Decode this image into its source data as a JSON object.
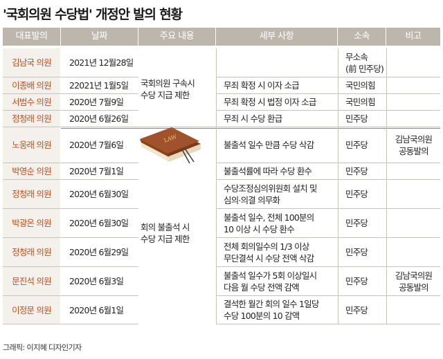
{
  "title": "'국회의원 수당법' 개정안 발의 현황",
  "headers": [
    "대표발의",
    "날짜",
    "주요 내용",
    "세부 사항",
    "소속",
    "비고"
  ],
  "rows": [
    {
      "name": "김남국 의원",
      "date": "2021년 12월28일",
      "detail": [
        "",
        ""
      ],
      "party": [
        "무소속",
        "(前 민주당)"
      ],
      "note": [
        "",
        ""
      ]
    },
    {
      "name": "이종배 의원",
      "date": "22021년 1월5일",
      "detail": [
        "무죄 확정 시 이자 소급",
        ""
      ],
      "party": [
        "국민의힘",
        ""
      ],
      "note": [
        "",
        ""
      ]
    },
    {
      "name": "서범수 의원",
      "date": "2020년 7월9일",
      "detail": [
        "무죄 확정 시 법정 이자 소급",
        ""
      ],
      "party": [
        "국민의힘",
        ""
      ],
      "note": [
        "",
        ""
      ]
    },
    {
      "name": "정청래 의원",
      "date": "2020년 6월26일",
      "detail": [
        "무죄 시 수당 환급",
        ""
      ],
      "party": [
        "민주당",
        ""
      ],
      "note": [
        "",
        ""
      ]
    },
    {
      "name": "노웅래 의원",
      "date": "2020년 7월6일",
      "detail": [
        "불출석 일수 만큼 수당 삭감",
        ""
      ],
      "party": [
        "민주당",
        ""
      ],
      "note": [
        "김남국의원",
        "공동발의"
      ]
    },
    {
      "name": "박영순 의원",
      "date": "2020년 7월1일",
      "detail": [
        "불출석률에 따라 수당 환수",
        ""
      ],
      "party": [
        "민주당",
        ""
      ],
      "note": [
        "",
        ""
      ]
    },
    {
      "name": "정청래 의원",
      "date": "2020년 6월30일",
      "detail": [
        "수당조정심의위원회 설치 및",
        "심의·의결 의무화"
      ],
      "party": [
        "민주당",
        ""
      ],
      "note": [
        "",
        ""
      ]
    },
    {
      "name": "박광온 의원",
      "date": "2020년 6월30일",
      "detail": [
        "불출석 일수, 전체 100분의",
        "10 이상 시 수당 환수"
      ],
      "party": [
        "민주당",
        ""
      ],
      "note": [
        "",
        ""
      ]
    },
    {
      "name": "정청래 의원",
      "date": "2020년 6월29일",
      "detail": [
        "전체 회의일수의 1/3 이상",
        "무단결석 시 수당 전액 삭감"
      ],
      "party": [
        "민주당",
        ""
      ],
      "note": [
        "",
        ""
      ]
    },
    {
      "name": "문진석 의원",
      "date": "2020년 6월3일",
      "detail": [
        "불출석 일수가 5회 이상일시",
        "다음 월 수당 전액 감액"
      ],
      "party": [
        "민주당",
        ""
      ],
      "note": [
        "김남국의원",
        "공동발의"
      ]
    },
    {
      "name": "이정문 의원",
      "date": "2020년 6월1일",
      "detail": [
        "결석한 월간 회의 일수 1일당",
        "수당 100분의 10 감액"
      ],
      "party": [
        "민주당",
        ""
      ],
      "note": [
        "",
        ""
      ]
    }
  ],
  "content_groups": [
    {
      "lines": [
        "국회의원 구속시",
        "수당 지급 제한"
      ]
    },
    {
      "lines": [
        "회의 불출석 시",
        "수당 지급 제한"
      ]
    }
  ],
  "book_label": "LAW",
  "credit": "그래픽: 이지혜 디자인기자",
  "colors": {
    "header_bg": "#bcb6ad",
    "name_text": "#c0501a",
    "name_bg": "#f4f1ed",
    "book": "#a0522d"
  }
}
